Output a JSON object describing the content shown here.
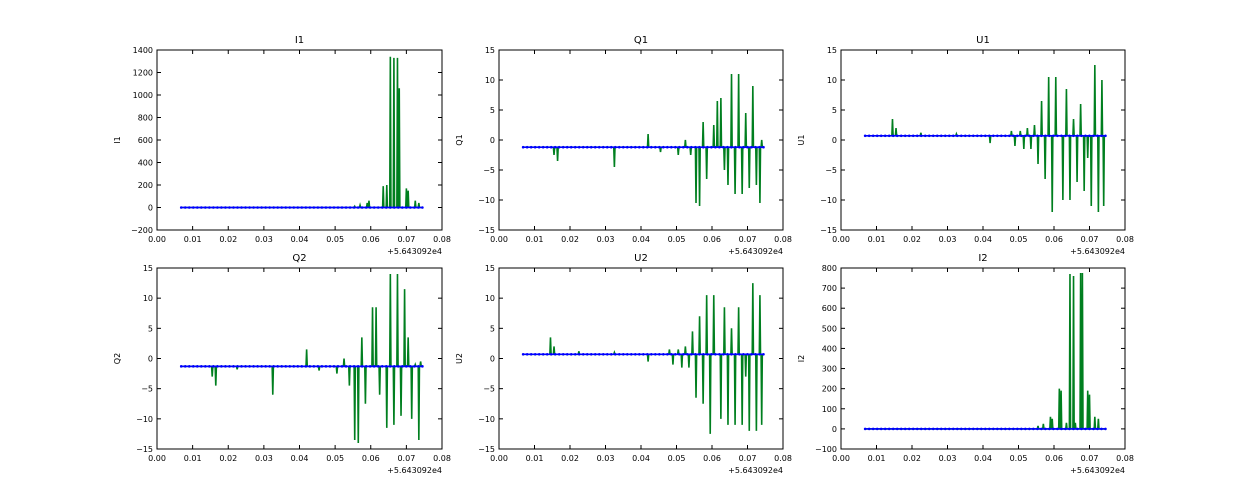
{
  "colors": {
    "green": "#007f1f",
    "blue": "#0000ff",
    "axis": "#000000"
  },
  "chart_data": [
    {
      "type": "line",
      "title": "I1",
      "ylabel": "I1",
      "x_offset_label": "+5.643092e4",
      "xlim": [
        0.0,
        0.08
      ],
      "ylim": [
        -200,
        1400
      ],
      "xticks": [
        "0.00",
        "0.01",
        "0.02",
        "0.03",
        "0.04",
        "0.05",
        "0.06",
        "0.07",
        "0.08"
      ],
      "yticks": [
        -200,
        0,
        200,
        400,
        600,
        800,
        1000,
        1200,
        1400
      ],
      "yticklabels": [
        "−200",
        "0",
        "200",
        "400",
        "600",
        "800",
        "1000",
        "1200",
        "1400"
      ],
      "baseline": 0,
      "x_start": 0.0068,
      "x_end": 0.0745,
      "spikes": [
        [
          0.0555,
          10
        ],
        [
          0.057,
          20
        ],
        [
          0.059,
          40
        ],
        [
          0.0595,
          60
        ],
        [
          0.0635,
          190
        ],
        [
          0.0645,
          200
        ],
        [
          0.0655,
          1340
        ],
        [
          0.0665,
          1330
        ],
        [
          0.0675,
          1330
        ],
        [
          0.068,
          1060
        ],
        [
          0.07,
          170
        ],
        [
          0.0705,
          150
        ],
        [
          0.0725,
          60
        ],
        [
          0.0735,
          40
        ]
      ]
    },
    {
      "type": "line",
      "title": "Q1",
      "ylabel": "Q1",
      "x_offset_label": "+5.643092e4",
      "xlim": [
        0.0,
        0.08
      ],
      "ylim": [
        -15,
        15
      ],
      "xticks": [
        "0.00",
        "0.01",
        "0.02",
        "0.03",
        "0.04",
        "0.05",
        "0.06",
        "0.07",
        "0.08"
      ],
      "yticks": [
        -15,
        -10,
        -5,
        0,
        5,
        10,
        15
      ],
      "yticklabels": [
        "−15",
        "−10",
        "−5",
        "0",
        "5",
        "10",
        "15"
      ],
      "baseline": -1.2,
      "x_start": 0.0068,
      "x_end": 0.0745,
      "spikes": [
        [
          0.0155,
          -2.5
        ],
        [
          0.0165,
          -3.5
        ],
        [
          0.0325,
          -4.5
        ],
        [
          0.042,
          1.0
        ],
        [
          0.0455,
          -2
        ],
        [
          0.0505,
          -2.5
        ],
        [
          0.0525,
          0
        ],
        [
          0.054,
          -2.5
        ],
        [
          0.0555,
          -10.5
        ],
        [
          0.0565,
          -11
        ],
        [
          0.0575,
          3
        ],
        [
          0.0585,
          -6.5
        ],
        [
          0.0605,
          2.5
        ],
        [
          0.0615,
          6.5
        ],
        [
          0.0625,
          7
        ],
        [
          0.0635,
          -5
        ],
        [
          0.0645,
          -7.5
        ],
        [
          0.0655,
          11
        ],
        [
          0.0665,
          -9
        ],
        [
          0.0675,
          11
        ],
        [
          0.0685,
          -9
        ],
        [
          0.0695,
          4.5
        ],
        [
          0.0705,
          -8
        ],
        [
          0.0715,
          9
        ],
        [
          0.0725,
          -7.5
        ],
        [
          0.0735,
          -10.5
        ],
        [
          0.074,
          0
        ]
      ]
    },
    {
      "type": "line",
      "title": "U1",
      "ylabel": "U1",
      "x_offset_label": "+5.643092e4",
      "xlim": [
        0.0,
        0.08
      ],
      "ylim": [
        -15,
        15
      ],
      "xticks": [
        "0.00",
        "0.01",
        "0.02",
        "0.03",
        "0.04",
        "0.05",
        "0.06",
        "0.07",
        "0.08"
      ],
      "yticks": [
        -15,
        -10,
        -5,
        0,
        5,
        10,
        15
      ],
      "yticklabels": [
        "−15",
        "−10",
        "−5",
        "0",
        "5",
        "10",
        "15"
      ],
      "baseline": 0.7,
      "x_start": 0.0068,
      "x_end": 0.0745,
      "spikes": [
        [
          0.0145,
          3.5
        ],
        [
          0.0155,
          2
        ],
        [
          0.0225,
          1.2
        ],
        [
          0.0325,
          1
        ],
        [
          0.042,
          -0.5
        ],
        [
          0.048,
          1.5
        ],
        [
          0.049,
          -1
        ],
        [
          0.0505,
          1.5
        ],
        [
          0.0515,
          -1.5
        ],
        [
          0.0525,
          2
        ],
        [
          0.0535,
          -1.5
        ],
        [
          0.0545,
          2.5
        ],
        [
          0.0555,
          -4
        ],
        [
          0.0565,
          6.5
        ],
        [
          0.0575,
          -6.5
        ],
        [
          0.0585,
          10.5
        ],
        [
          0.0595,
          -12
        ],
        [
          0.0605,
          10.5
        ],
        [
          0.0625,
          -10
        ],
        [
          0.0635,
          8.5
        ],
        [
          0.0645,
          -10
        ],
        [
          0.0655,
          3.5
        ],
        [
          0.0665,
          -7
        ],
        [
          0.0675,
          6
        ],
        [
          0.0685,
          -8.5
        ],
        [
          0.0695,
          -3
        ],
        [
          0.0705,
          -11
        ],
        [
          0.0715,
          12.5
        ],
        [
          0.0725,
          -12
        ],
        [
          0.0735,
          10
        ],
        [
          0.074,
          -11
        ]
      ]
    },
    {
      "type": "line",
      "title": "Q2",
      "ylabel": "Q2",
      "x_offset_label": "+5.643092e4",
      "xlim": [
        0.0,
        0.08
      ],
      "ylim": [
        -15,
        15
      ],
      "xticks": [
        "0.00",
        "0.01",
        "0.02",
        "0.03",
        "0.04",
        "0.05",
        "0.06",
        "0.07",
        "0.08"
      ],
      "yticks": [
        -15,
        -10,
        -5,
        0,
        5,
        10,
        15
      ],
      "yticklabels": [
        "−15",
        "−10",
        "−5",
        "0",
        "5",
        "10",
        "15"
      ],
      "baseline": -1.3,
      "x_start": 0.0068,
      "x_end": 0.0745,
      "spikes": [
        [
          0.0155,
          -3
        ],
        [
          0.0165,
          -4.5
        ],
        [
          0.0225,
          -1.8
        ],
        [
          0.0325,
          -6
        ],
        [
          0.042,
          1.5
        ],
        [
          0.0455,
          -2
        ],
        [
          0.0505,
          -2.5
        ],
        [
          0.0525,
          0
        ],
        [
          0.054,
          -4.5
        ],
        [
          0.0555,
          -13.5
        ],
        [
          0.0565,
          -14
        ],
        [
          0.0575,
          3.5
        ],
        [
          0.0585,
          -7.5
        ],
        [
          0.0605,
          8.5
        ],
        [
          0.0615,
          8.5
        ],
        [
          0.0625,
          -6
        ],
        [
          0.0645,
          -11.5
        ],
        [
          0.0655,
          14
        ],
        [
          0.0665,
          -11
        ],
        [
          0.0675,
          14
        ],
        [
          0.0685,
          -9.5
        ],
        [
          0.0695,
          11.5
        ],
        [
          0.0705,
          3.5
        ],
        [
          0.0715,
          -10
        ],
        [
          0.0725,
          -1
        ],
        [
          0.0735,
          -13.5
        ],
        [
          0.074,
          -0.5
        ]
      ]
    },
    {
      "type": "line",
      "title": "U2",
      "ylabel": "U2",
      "x_offset_label": "+5.643092e4",
      "xlim": [
        0.0,
        0.08
      ],
      "ylim": [
        -15,
        15
      ],
      "xticks": [
        "0.00",
        "0.01",
        "0.02",
        "0.03",
        "0.04",
        "0.05",
        "0.06",
        "0.07",
        "0.08"
      ],
      "yticks": [
        -15,
        -10,
        -5,
        0,
        5,
        10,
        15
      ],
      "yticklabels": [
        "−15",
        "−10",
        "−5",
        "0",
        "5",
        "10",
        "15"
      ],
      "baseline": 0.7,
      "x_start": 0.0068,
      "x_end": 0.0745,
      "spikes": [
        [
          0.0145,
          3.5
        ],
        [
          0.0155,
          2
        ],
        [
          0.0225,
          1.2
        ],
        [
          0.0325,
          1
        ],
        [
          0.042,
          -0.5
        ],
        [
          0.048,
          1.5
        ],
        [
          0.049,
          -1
        ],
        [
          0.0505,
          1.5
        ],
        [
          0.0515,
          -1.5
        ],
        [
          0.0525,
          2
        ],
        [
          0.0535,
          -1.5
        ],
        [
          0.0545,
          4.5
        ],
        [
          0.0555,
          -6.5
        ],
        [
          0.0565,
          7
        ],
        [
          0.0575,
          -7.5
        ],
        [
          0.0585,
          10.5
        ],
        [
          0.0595,
          -12.5
        ],
        [
          0.0605,
          10.5
        ],
        [
          0.0625,
          -10
        ],
        [
          0.0635,
          8.5
        ],
        [
          0.0645,
          -11
        ],
        [
          0.0655,
          5
        ],
        [
          0.0665,
          -11
        ],
        [
          0.0675,
          8.5
        ],
        [
          0.0685,
          -11
        ],
        [
          0.0695,
          -3
        ],
        [
          0.0705,
          -12
        ],
        [
          0.0715,
          12.5
        ],
        [
          0.0725,
          -12
        ],
        [
          0.0735,
          10.5
        ],
        [
          0.074,
          -11
        ]
      ]
    },
    {
      "type": "line",
      "title": "I2",
      "ylabel": "I2",
      "x_offset_label": "+5.643092e4",
      "xlim": [
        0.0,
        0.08
      ],
      "ylim": [
        -100,
        800
      ],
      "xticks": [
        "0.00",
        "0.01",
        "0.02",
        "0.03",
        "0.04",
        "0.05",
        "0.06",
        "0.07",
        "0.08"
      ],
      "yticks": [
        -100,
        0,
        100,
        200,
        300,
        400,
        500,
        600,
        700,
        800
      ],
      "yticklabels": [
        "−100",
        "0",
        "100",
        "200",
        "300",
        "400",
        "500",
        "600",
        "700",
        "800"
      ],
      "baseline": 0,
      "x_start": 0.0068,
      "x_end": 0.0745,
      "spikes": [
        [
          0.0555,
          15
        ],
        [
          0.057,
          25
        ],
        [
          0.059,
          60
        ],
        [
          0.0595,
          50
        ],
        [
          0.0615,
          200
        ],
        [
          0.062,
          190
        ],
        [
          0.0635,
          30
        ],
        [
          0.0645,
          770
        ],
        [
          0.0655,
          760
        ],
        [
          0.066,
          30
        ],
        [
          0.0675,
          775
        ],
        [
          0.068,
          775
        ],
        [
          0.0695,
          190
        ],
        [
          0.07,
          170
        ],
        [
          0.0715,
          60
        ],
        [
          0.0725,
          50
        ]
      ]
    }
  ]
}
